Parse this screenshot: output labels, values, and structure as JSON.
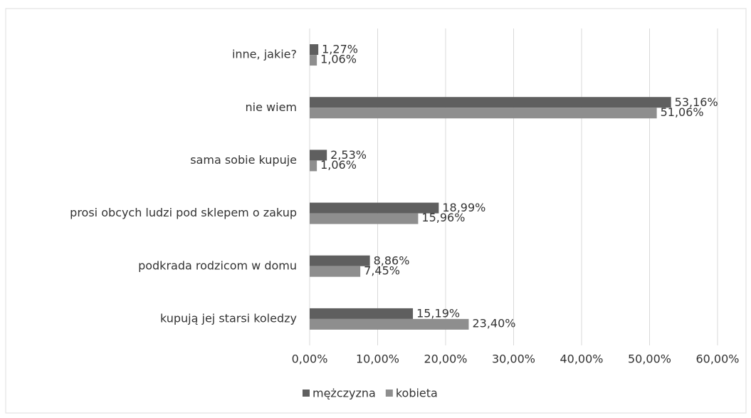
{
  "chart_data": {
    "type": "bar",
    "orientation": "horizontal",
    "categories": [
      "inne, jakie?",
      "nie wiem",
      "sama sobie kupuje",
      "prosi obcych ludzi pod sklepem o zakup",
      "podkrada rodzicom w domu",
      "kupują jej starsi koledzy"
    ],
    "series": [
      {
        "name": "mężczyzna",
        "color": "#5f5f5f",
        "values": [
          1.27,
          53.16,
          2.53,
          18.99,
          8.86,
          15.19
        ],
        "value_labels": [
          "1,27%",
          "53,16%",
          "2,53%",
          "18,99%",
          "8,86%",
          "15,19%"
        ]
      },
      {
        "name": "kobieta",
        "color": "#8e8e8e",
        "values": [
          1.06,
          51.06,
          1.06,
          15.96,
          7.45,
          23.4
        ],
        "value_labels": [
          "1,06%",
          "51,06%",
          "1,06%",
          "15,96%",
          "7,45%",
          "23,40%"
        ]
      }
    ],
    "xlim": [
      0,
      60
    ],
    "xticks": [
      {
        "value": 0,
        "label": "0,00%"
      },
      {
        "value": 10,
        "label": "10,00%"
      },
      {
        "value": 20,
        "label": "20,00%"
      },
      {
        "value": 30,
        "label": "30,00%"
      },
      {
        "value": 40,
        "label": "40,00%"
      },
      {
        "value": 50,
        "label": "50,00%"
      },
      {
        "value": 60,
        "label": "60,00%"
      }
    ],
    "grid": true,
    "legend": "bottom"
  }
}
